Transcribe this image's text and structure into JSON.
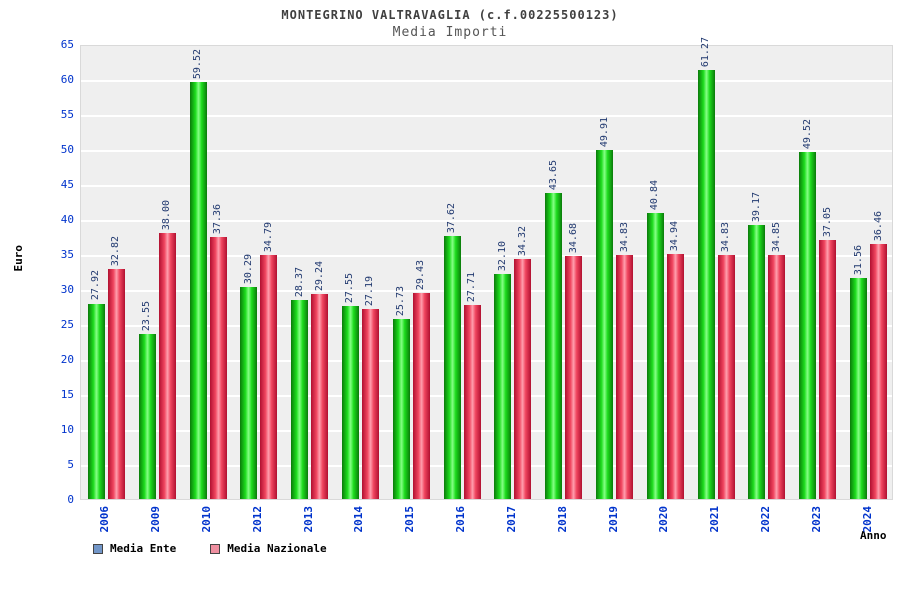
{
  "title": "MONTEGRINO VALTRAVAGLIA (c.f.00225500123)",
  "subtitle": "Media Importi",
  "ylabel": "Euro",
  "xlabel": "Anno",
  "colors": {
    "axis_text": "#0033cc",
    "value_text": "#223a70",
    "plot_background": "#efefef",
    "gridline": "#ffffff"
  },
  "legend": [
    {
      "label": "Media Ente",
      "swatch": "#7296c8"
    },
    {
      "label": "Media Nazionale",
      "swatch": "#ef8fa0"
    }
  ],
  "chart_data": {
    "type": "bar",
    "title": "MONTEGRINO VALTRAVAGLIA (c.f.00225500123)",
    "subtitle": "Media Importi",
    "xlabel": "Anno",
    "ylabel": "Euro",
    "ylim": [
      0,
      65
    ],
    "yticks": [
      0,
      5,
      10,
      15,
      20,
      25,
      30,
      35,
      40,
      45,
      50,
      55,
      60,
      65
    ],
    "grid": true,
    "legend_position": "bottom-left",
    "categories": [
      "2006",
      "2009",
      "2010",
      "2012",
      "2013",
      "2014",
      "2015",
      "2016",
      "2017",
      "2018",
      "2019",
      "2020",
      "2021",
      "2022",
      "2023",
      "2024"
    ],
    "series": [
      {
        "name": "Media Ente",
        "gradient": [
          "#0a7a0a",
          "#1ddc1d",
          "#86ff86"
        ],
        "values": [
          27.92,
          23.55,
          59.52,
          30.29,
          28.37,
          27.55,
          25.73,
          37.62,
          32.1,
          43.65,
          49.91,
          40.84,
          61.27,
          39.17,
          49.52,
          31.56
        ]
      },
      {
        "name": "Media Nazionale",
        "gradient": [
          "#b01030",
          "#f0455f",
          "#ff9fae"
        ],
        "values": [
          32.82,
          38.0,
          37.36,
          34.79,
          29.24,
          27.19,
          29.43,
          27.71,
          34.32,
          34.68,
          34.83,
          34.94,
          34.83,
          34.85,
          37.05,
          36.46
        ]
      }
    ]
  }
}
